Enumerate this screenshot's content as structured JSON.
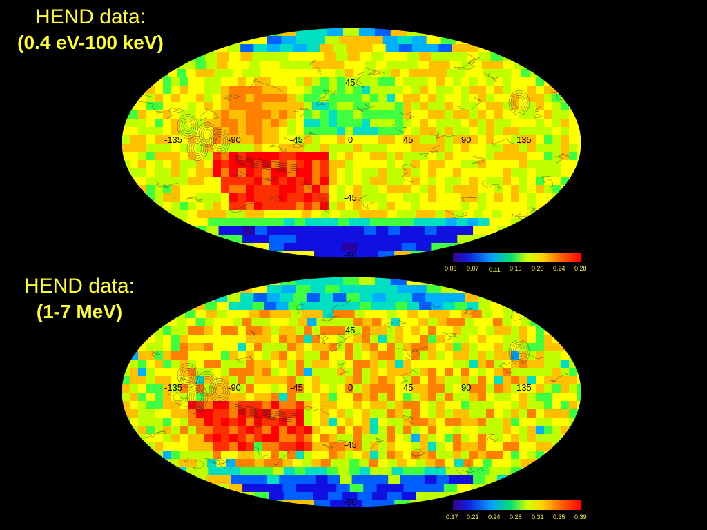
{
  "maps": [
    {
      "title_line1": "HEND data:",
      "title_line2": "(0.4 eV-100 keV)",
      "lon_labels": [
        "-135",
        "-90",
        "-45",
        "0",
        "45",
        "90",
        "135"
      ],
      "lat_labels": [
        "45",
        "-45",
        "-90"
      ],
      "colorbar_labels": [
        "0.03",
        "0.07",
        "0.11",
        "0.15",
        "0.20",
        "0.24",
        "0.28"
      ],
      "value_range": [
        0.03,
        0.28
      ]
    },
    {
      "title_line1": "HEND data:",
      "title_line2": "(1-7 MeV)",
      "lon_labels": [
        "-135",
        "-90",
        "-45",
        "0",
        "45",
        "90",
        "135"
      ],
      "lat_labels": [
        "45",
        "-45",
        "-90"
      ],
      "colorbar_labels": [
        "0.17",
        "0.21",
        "0.24",
        "0.28",
        "0.31",
        "0.35",
        "0.39"
      ],
      "value_range": [
        0.17,
        0.39
      ]
    }
  ],
  "colormap": [
    "#2a00a0",
    "#1010e0",
    "#0060ff",
    "#00b0ff",
    "#00e0c0",
    "#40ff40",
    "#c0ff00",
    "#ffff00",
    "#ffc000",
    "#ff8000",
    "#ff3000",
    "#ff0000"
  ]
}
